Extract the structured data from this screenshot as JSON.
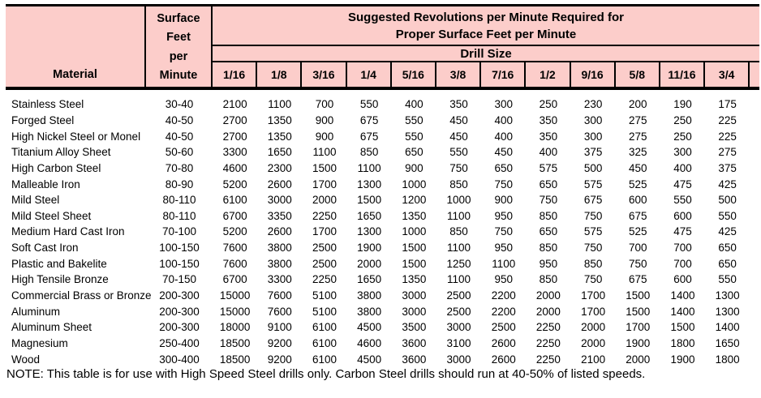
{
  "header": {
    "material_label": "Material",
    "surface_feet_label": "Surface\nFeet\nper\nMinute",
    "title": "Suggested Revolutions per Minute Required for\nProper Surface Feet per Minute",
    "drill_size_label": "Drill Size",
    "drill_sizes": [
      "1/16",
      "1/8",
      "3/16",
      "1/4",
      "5/16",
      "3/8",
      "7/16",
      "1/2",
      "9/16",
      "5/8",
      "11/16",
      "3/4"
    ]
  },
  "rows": [
    {
      "material": "Stainless Steel",
      "sfm": "30-40",
      "rpm": [
        2100,
        1100,
        700,
        550,
        400,
        350,
        300,
        250,
        230,
        200,
        190,
        175
      ]
    },
    {
      "material": "Forged Steel",
      "sfm": "40-50",
      "rpm": [
        2700,
        1350,
        900,
        675,
        550,
        450,
        400,
        350,
        300,
        275,
        250,
        225
      ]
    },
    {
      "material": "High Nickel Steel or Monel",
      "sfm": "40-50",
      "rpm": [
        2700,
        1350,
        900,
        675,
        550,
        450,
        400,
        350,
        300,
        275,
        250,
        225
      ]
    },
    {
      "material": "Titanium Alloy Sheet",
      "sfm": "50-60",
      "rpm": [
        3300,
        1650,
        1100,
        850,
        650,
        550,
        450,
        400,
        375,
        325,
        300,
        275
      ]
    },
    {
      "material": "High Carbon Steel",
      "sfm": "70-80",
      "rpm": [
        4600,
        2300,
        1500,
        1100,
        900,
        750,
        650,
        575,
        500,
        450,
        400,
        375
      ]
    },
    {
      "material": "Malleable Iron",
      "sfm": "80-90",
      "rpm": [
        5200,
        2600,
        1700,
        1300,
        1000,
        850,
        750,
        650,
        575,
        525,
        475,
        425
      ]
    },
    {
      "material": "Mild Steel",
      "sfm": "80-110",
      "rpm": [
        6100,
        3000,
        2000,
        1500,
        1200,
        1000,
        900,
        750,
        675,
        600,
        550,
        500
      ]
    },
    {
      "material": "Mild Steel Sheet",
      "sfm": "80-110",
      "rpm": [
        6700,
        3350,
        2250,
        1650,
        1350,
        1100,
        950,
        850,
        750,
        675,
        600,
        550
      ]
    },
    {
      "material": "Medium Hard Cast Iron",
      "sfm": "70-100",
      "rpm": [
        5200,
        2600,
        1700,
        1300,
        1000,
        850,
        750,
        650,
        575,
        525,
        475,
        425
      ]
    },
    {
      "material": "Soft Cast Iron",
      "sfm": "100-150",
      "rpm": [
        7600,
        3800,
        2500,
        1900,
        1500,
        1100,
        950,
        850,
        750,
        700,
        700,
        650
      ]
    },
    {
      "material": "Plastic and Bakelite",
      "sfm": "100-150",
      "rpm": [
        7600,
        3800,
        2500,
        2000,
        1500,
        1250,
        1100,
        950,
        850,
        750,
        700,
        650
      ]
    },
    {
      "material": "High Tensile Bronze",
      "sfm": "70-150",
      "rpm": [
        6700,
        3300,
        2250,
        1650,
        1350,
        1100,
        950,
        850,
        750,
        675,
        600,
        550
      ]
    },
    {
      "material": "Commercial Brass or Bronze",
      "sfm": "200-300",
      "rpm": [
        15000,
        7600,
        5100,
        3800,
        3000,
        2500,
        2200,
        2000,
        1700,
        1500,
        1400,
        1300
      ]
    },
    {
      "material": "Aluminum",
      "sfm": "200-300",
      "rpm": [
        15000,
        7600,
        5100,
        3800,
        3000,
        2500,
        2200,
        2000,
        1700,
        1500,
        1400,
        1300
      ]
    },
    {
      "material": "Aluminum Sheet",
      "sfm": "200-300",
      "rpm": [
        18000,
        9100,
        6100,
        4500,
        3500,
        3000,
        2500,
        2250,
        2000,
        1700,
        1500,
        1400
      ]
    },
    {
      "material": "Magnesium",
      "sfm": "250-400",
      "rpm": [
        18500,
        9200,
        6100,
        4600,
        3600,
        3100,
        2600,
        2250,
        2000,
        1900,
        1800,
        1650
      ]
    },
    {
      "material": "Wood",
      "sfm": "300-400",
      "rpm": [
        18500,
        9200,
        6100,
        4500,
        3600,
        3000,
        2600,
        2250,
        2100,
        2000,
        1900,
        1800
      ]
    }
  ],
  "note": "NOTE: This table is for use with High Speed Steel drills only. Carbon Steel drills should run at 40-50% of listed speeds.",
  "colors": {
    "header_bg": "#fccdca",
    "border": "#000000",
    "text": "#000000",
    "page_bg": "#ffffff"
  }
}
